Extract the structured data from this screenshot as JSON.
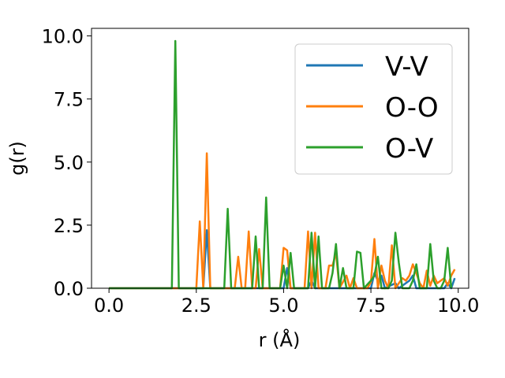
{
  "chart_data": {
    "type": "line",
    "xlabel": "r (Å)",
    "ylabel": "g(r)",
    "xlim": [
      -0.5,
      10.3
    ],
    "ylim": [
      0,
      10.3
    ],
    "xticks": [
      0.0,
      2.5,
      5.0,
      7.5,
      10.0
    ],
    "xtick_labels": [
      "0.0",
      "2.5",
      "5.0",
      "7.5",
      "10.0"
    ],
    "yticks": [
      0.0,
      2.5,
      5.0,
      7.5,
      10.0
    ],
    "ytick_labels": [
      "0.0",
      "2.5",
      "5.0",
      "7.5",
      "10.0"
    ],
    "legend_position": "top-right",
    "grid": false,
    "series": [
      {
        "name": "V-V",
        "color": "#1f77b4",
        "points": [
          [
            0,
            0
          ],
          [
            1.8,
            0
          ],
          [
            2.5,
            0
          ],
          [
            2.7,
            0
          ],
          [
            2.8,
            2.3
          ],
          [
            2.9,
            0
          ],
          [
            5.0,
            0
          ],
          [
            5.1,
            0.8
          ],
          [
            5.2,
            0
          ],
          [
            5.7,
            0
          ],
          [
            5.8,
            0.3
          ],
          [
            5.9,
            0
          ],
          [
            7.5,
            0
          ],
          [
            7.6,
            0.6
          ],
          [
            7.7,
            0.3
          ],
          [
            7.8,
            0.5
          ],
          [
            7.9,
            0
          ],
          [
            8.2,
            0.2
          ],
          [
            8.3,
            0
          ],
          [
            8.5,
            0.2
          ],
          [
            8.6,
            0.3
          ],
          [
            8.7,
            0.5
          ],
          [
            8.8,
            0
          ],
          [
            9.6,
            0
          ],
          [
            9.7,
            0.2
          ],
          [
            9.8,
            0
          ],
          [
            9.9,
            0.4
          ]
        ]
      },
      {
        "name": "O-O",
        "color": "#ff7f0e",
        "points": [
          [
            0,
            0
          ],
          [
            2.4,
            0
          ],
          [
            2.5,
            0
          ],
          [
            2.6,
            2.65
          ],
          [
            2.7,
            0
          ],
          [
            2.8,
            5.35
          ],
          [
            2.9,
            0
          ],
          [
            3.6,
            0
          ],
          [
            3.7,
            1.25
          ],
          [
            3.8,
            0
          ],
          [
            3.9,
            0
          ],
          [
            4.0,
            2.25
          ],
          [
            4.1,
            0
          ],
          [
            4.2,
            0
          ],
          [
            4.3,
            1.55
          ],
          [
            4.4,
            0
          ],
          [
            4.9,
            0
          ],
          [
            5.0,
            1.6
          ],
          [
            5.1,
            1.5
          ],
          [
            5.2,
            0
          ],
          [
            5.6,
            0
          ],
          [
            5.7,
            2.25
          ],
          [
            5.8,
            0
          ],
          [
            5.9,
            2.2
          ],
          [
            6.0,
            0
          ],
          [
            6.2,
            0
          ],
          [
            6.3,
            0.9
          ],
          [
            6.4,
            0.9
          ],
          [
            6.5,
            1.4
          ],
          [
            6.6,
            0
          ],
          [
            6.8,
            0.5
          ],
          [
            6.9,
            0
          ],
          [
            7.0,
            0.4
          ],
          [
            7.1,
            0
          ],
          [
            7.4,
            0
          ],
          [
            7.5,
            0.25
          ],
          [
            7.6,
            1.95
          ],
          [
            7.7,
            0
          ],
          [
            7.8,
            0.9
          ],
          [
            7.9,
            0.3
          ],
          [
            8.0,
            0
          ],
          [
            8.1,
            1.7
          ],
          [
            8.2,
            0
          ],
          [
            8.4,
            0.4
          ],
          [
            8.5,
            0.3
          ],
          [
            8.6,
            0.5
          ],
          [
            8.7,
            0.95
          ],
          [
            8.8,
            0.6
          ],
          [
            8.9,
            0.2
          ],
          [
            9.0,
            0
          ],
          [
            9.1,
            0.7
          ],
          [
            9.2,
            0.1
          ],
          [
            9.3,
            0.5
          ],
          [
            9.4,
            0.2
          ],
          [
            9.5,
            0.3
          ],
          [
            9.6,
            0.4
          ],
          [
            9.7,
            0.1
          ],
          [
            9.8,
            0.5
          ],
          [
            9.9,
            0.75
          ]
        ]
      },
      {
        "name": "O-V",
        "color": "#2ca02c",
        "points": [
          [
            0,
            0
          ],
          [
            1.7,
            0
          ],
          [
            1.8,
            0
          ],
          [
            1.9,
            9.8
          ],
          [
            2.0,
            0
          ],
          [
            3.2,
            0
          ],
          [
            3.3,
            0
          ],
          [
            3.4,
            3.15
          ],
          [
            3.5,
            0
          ],
          [
            4.0,
            0
          ],
          [
            4.1,
            0
          ],
          [
            4.2,
            2.05
          ],
          [
            4.3,
            0
          ],
          [
            4.4,
            0
          ],
          [
            4.5,
            3.6
          ],
          [
            4.6,
            0
          ],
          [
            4.8,
            0
          ],
          [
            4.9,
            0
          ],
          [
            5.0,
            0.9
          ],
          [
            5.1,
            0
          ],
          [
            5.2,
            1.4
          ],
          [
            5.3,
            0
          ],
          [
            5.7,
            0
          ],
          [
            5.8,
            2.2
          ],
          [
            5.9,
            0
          ],
          [
            6.0,
            2.05
          ],
          [
            6.1,
            0
          ],
          [
            6.3,
            0
          ],
          [
            6.4,
            0.6
          ],
          [
            6.5,
            1.75
          ],
          [
            6.6,
            0
          ],
          [
            6.7,
            0.8
          ],
          [
            6.8,
            0
          ],
          [
            7.0,
            0
          ],
          [
            7.1,
            1.45
          ],
          [
            7.2,
            1.4
          ],
          [
            7.3,
            0
          ],
          [
            7.5,
            0.3
          ],
          [
            7.6,
            0.5
          ],
          [
            7.7,
            1.25
          ],
          [
            7.8,
            0
          ],
          [
            8.0,
            0
          ],
          [
            8.1,
            0.3
          ],
          [
            8.2,
            2.2
          ],
          [
            8.3,
            1.0
          ],
          [
            8.4,
            0
          ],
          [
            8.6,
            0
          ],
          [
            8.7,
            0.3
          ],
          [
            8.8,
            0.95
          ],
          [
            8.9,
            0
          ],
          [
            9.1,
            0
          ],
          [
            9.2,
            1.75
          ],
          [
            9.3,
            0.3
          ],
          [
            9.4,
            0
          ],
          [
            9.5,
            0
          ],
          [
            9.6,
            0.3
          ],
          [
            9.7,
            1.6
          ],
          [
            9.8,
            0
          ]
        ]
      }
    ]
  }
}
